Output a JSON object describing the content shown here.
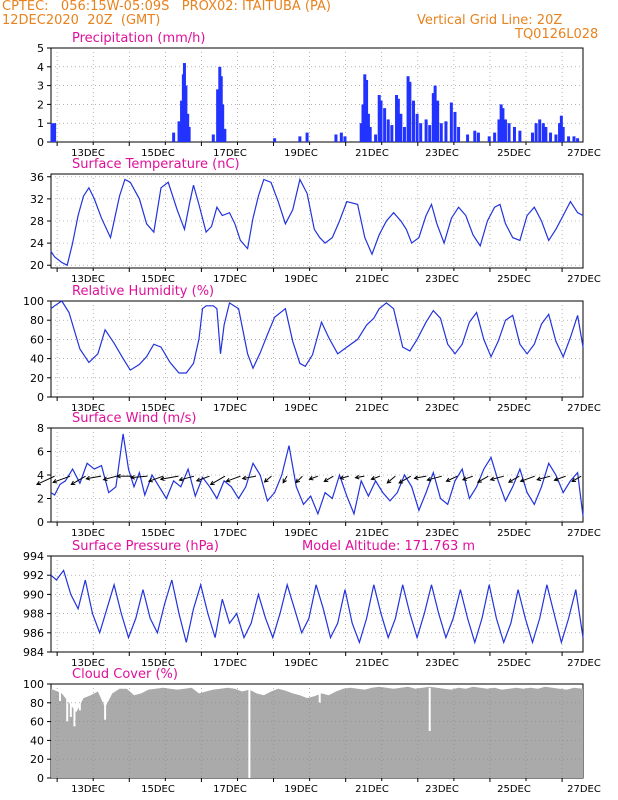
{
  "header": {
    "line1": "CPTEC:   056:15W-05:09S   PROX02: ITAITUBA (PA)",
    "line2_left": "12DEC2020  20Z  (GMT)",
    "line2_right": "Vertical Grid Line: 20Z",
    "code": "TQ0126L028"
  },
  "colors": {
    "series": "#2233dd",
    "title": "#e0109a",
    "header": "#e8821e",
    "bars": "#2233ff",
    "cloud": "#aaaaaa"
  },
  "x_tick_labels": [
    "13DEC",
    "15DEC",
    "17DEC",
    "19DEC",
    "21DEC",
    "23DEC",
    "25DEC",
    "27DEC"
  ],
  "chart_data": [
    {
      "type": "bar",
      "title": "Precipitation (mm/h)",
      "ylim": [
        0,
        5
      ],
      "yticks": [
        0,
        1,
        2,
        3,
        4,
        5
      ],
      "x_unit": "days since 12DEC 20Z",
      "points": [
        [
          0.03,
          1.0
        ],
        [
          0.1,
          1.0
        ],
        [
          3.4,
          0.5
        ],
        [
          3.55,
          1.1
        ],
        [
          3.62,
          2.2
        ],
        [
          3.67,
          3.6
        ],
        [
          3.7,
          4.2
        ],
        [
          3.74,
          3.0
        ],
        [
          3.79,
          1.5
        ],
        [
          3.83,
          0.8
        ],
        [
          4.5,
          0.4
        ],
        [
          4.62,
          2.8
        ],
        [
          4.68,
          4.0
        ],
        [
          4.72,
          3.5
        ],
        [
          4.76,
          2.0
        ],
        [
          4.82,
          0.7
        ],
        [
          6.2,
          0.2
        ],
        [
          6.9,
          0.3
        ],
        [
          7.1,
          0.5
        ],
        [
          7.9,
          0.4
        ],
        [
          8.05,
          0.5
        ],
        [
          8.15,
          0.3
        ],
        [
          8.6,
          1.0
        ],
        [
          8.65,
          2.0
        ],
        [
          8.7,
          3.6
        ],
        [
          8.75,
          3.3
        ],
        [
          8.8,
          1.5
        ],
        [
          8.85,
          0.8
        ],
        [
          9.0,
          0.4
        ],
        [
          9.1,
          2.5
        ],
        [
          9.15,
          2.2
        ],
        [
          9.25,
          1.8
        ],
        [
          9.35,
          1.2
        ],
        [
          9.45,
          0.9
        ],
        [
          9.58,
          2.5
        ],
        [
          9.63,
          2.3
        ],
        [
          9.7,
          1.5
        ],
        [
          9.8,
          0.8
        ],
        [
          9.9,
          3.5
        ],
        [
          9.95,
          3.2
        ],
        [
          10.05,
          2.2
        ],
        [
          10.15,
          1.5
        ],
        [
          10.25,
          1.0
        ],
        [
          10.4,
          1.2
        ],
        [
          10.5,
          0.9
        ],
        [
          10.6,
          2.6
        ],
        [
          10.65,
          3.0
        ],
        [
          10.72,
          2.2
        ],
        [
          10.82,
          1.0
        ],
        [
          10.95,
          1.1
        ],
        [
          11.1,
          2.1
        ],
        [
          11.2,
          1.6
        ],
        [
          11.3,
          0.8
        ],
        [
          11.55,
          0.4
        ],
        [
          11.75,
          0.6
        ],
        [
          11.85,
          0.5
        ],
        [
          12.15,
          0.3
        ],
        [
          12.3,
          0.5
        ],
        [
          12.42,
          1.2
        ],
        [
          12.48,
          2.0
        ],
        [
          12.53,
          1.8
        ],
        [
          12.6,
          1.2
        ],
        [
          12.7,
          1.0
        ],
        [
          12.85,
          0.8
        ],
        [
          13.0,
          0.6
        ],
        [
          13.35,
          0.5
        ],
        [
          13.45,
          1.0
        ],
        [
          13.55,
          1.2
        ],
        [
          13.65,
          1.0
        ],
        [
          13.72,
          0.8
        ],
        [
          13.85,
          0.5
        ],
        [
          14.0,
          0.4
        ],
        [
          14.1,
          1.0
        ],
        [
          14.15,
          1.4
        ],
        [
          14.2,
          0.8
        ],
        [
          14.35,
          0.3
        ],
        [
          14.5,
          0.3
        ],
        [
          14.6,
          0.2
        ]
      ]
    },
    {
      "type": "line",
      "title": "Surface Temperature (nC)",
      "ylim": [
        19.5,
        36.5
      ],
      "yticks": [
        20,
        24,
        28,
        32,
        36
      ],
      "x": [
        0,
        0.1,
        0.3,
        0.45,
        0.6,
        0.75,
        0.9,
        1.05,
        1.2,
        1.4,
        1.65,
        1.9,
        2.05,
        2.2,
        2.45,
        2.65,
        2.85,
        3.05,
        3.25,
        3.5,
        3.7,
        3.85,
        3.95,
        4.1,
        4.3,
        4.45,
        4.6,
        4.75,
        4.95,
        5.1,
        5.25,
        5.45,
        5.6,
        5.75,
        5.9,
        6.1,
        6.3,
        6.5,
        6.7,
        6.9,
        7.1,
        7.3,
        7.45,
        7.6,
        7.8,
        8.0,
        8.2,
        8.5,
        8.7,
        8.9,
        9.1,
        9.3,
        9.5,
        9.7,
        9.85,
        10.0,
        10.2,
        10.4,
        10.55,
        10.7,
        10.9,
        11.1,
        11.3,
        11.5,
        11.7,
        11.9,
        12.1,
        12.3,
        12.45,
        12.6,
        12.8,
        13.0,
        13.2,
        13.4,
        13.6,
        13.8,
        14.0,
        14.2,
        14.4,
        14.6,
        14.75
      ],
      "values": [
        22.5,
        21.5,
        20.5,
        20.0,
        24.0,
        29.0,
        32.5,
        34.0,
        32.0,
        28.5,
        25.0,
        32.5,
        35.5,
        35.0,
        32.0,
        27.5,
        26.0,
        34.0,
        35.0,
        30.0,
        26.5,
        31.5,
        34.5,
        31.0,
        26.0,
        27.0,
        30.5,
        29.0,
        29.5,
        27.5,
        24.5,
        23.0,
        28.5,
        32.5,
        35.5,
        35.0,
        31.5,
        27.5,
        30.0,
        35.5,
        33.0,
        26.5,
        25.0,
        24.0,
        25.0,
        28.0,
        31.5,
        31.0,
        25.0,
        22.0,
        25.5,
        28.0,
        29.5,
        28.0,
        26.5,
        24.0,
        25.0,
        29.0,
        31.0,
        27.5,
        24.0,
        28.5,
        30.5,
        29.0,
        25.5,
        23.5,
        28.0,
        30.5,
        31.0,
        27.5,
        25.0,
        24.5,
        29.0,
        30.5,
        28.0,
        24.5,
        26.5,
        29.0,
        31.5,
        29.5,
        29.0
      ]
    },
    {
      "type": "line",
      "title": "Relative Humidity (%)",
      "ylim": [
        0,
        100
      ],
      "yticks": [
        0,
        20,
        40,
        60,
        80,
        100
      ],
      "x": [
        0,
        0.1,
        0.3,
        0.5,
        0.8,
        1.05,
        1.3,
        1.5,
        1.75,
        2.0,
        2.2,
        2.45,
        2.65,
        2.85,
        3.05,
        3.3,
        3.55,
        3.75,
        3.95,
        4.1,
        4.2,
        4.3,
        4.5,
        4.6,
        4.7,
        4.8,
        4.95,
        5.2,
        5.45,
        5.6,
        5.8,
        6.0,
        6.2,
        6.5,
        6.7,
        6.9,
        7.05,
        7.25,
        7.5,
        7.7,
        7.95,
        8.2,
        8.5,
        8.75,
        8.95,
        9.1,
        9.3,
        9.5,
        9.75,
        9.95,
        10.15,
        10.4,
        10.6,
        10.8,
        11.0,
        11.2,
        11.4,
        11.6,
        11.8,
        12.0,
        12.2,
        12.4,
        12.6,
        12.8,
        13.0,
        13.2,
        13.4,
        13.6,
        13.8,
        14.0,
        14.2,
        14.4,
        14.6,
        14.75
      ],
      "values": [
        92,
        95,
        100,
        88,
        50,
        36,
        45,
        70,
        56,
        40,
        28,
        34,
        42,
        55,
        52,
        36,
        25,
        25,
        35,
        60,
        92,
        95,
        95,
        92,
        45,
        75,
        98,
        92,
        45,
        30,
        46,
        65,
        83,
        92,
        58,
        35,
        32,
        44,
        78,
        62,
        45,
        52,
        60,
        75,
        82,
        92,
        98,
        92,
        52,
        48,
        60,
        78,
        90,
        82,
        55,
        45,
        55,
        78,
        88,
        60,
        42,
        58,
        80,
        85,
        55,
        45,
        55,
        76,
        86,
        58,
        42,
        62,
        85,
        52
      ]
    },
    {
      "type": "line",
      "title": "Surface Wind (m/s)",
      "ylim": [
        0,
        8
      ],
      "yticks": [
        0,
        2,
        4,
        6,
        8
      ],
      "x": [
        0,
        0.1,
        0.25,
        0.4,
        0.6,
        0.8,
        1.0,
        1.2,
        1.4,
        1.6,
        1.8,
        2.0,
        2.15,
        2.3,
        2.45,
        2.6,
        2.8,
        3.0,
        3.2,
        3.4,
        3.6,
        3.8,
        4.0,
        4.2,
        4.4,
        4.6,
        4.8,
        5.0,
        5.2,
        5.4,
        5.6,
        5.8,
        6.0,
        6.2,
        6.4,
        6.6,
        6.8,
        7.0,
        7.2,
        7.4,
        7.6,
        7.8,
        8.0,
        8.2,
        8.4,
        8.6,
        8.8,
        9.0,
        9.2,
        9.4,
        9.6,
        9.8,
        10.0,
        10.2,
        10.4,
        10.6,
        10.8,
        11.0,
        11.2,
        11.4,
        11.6,
        11.8,
        12.0,
        12.2,
        12.4,
        12.6,
        12.8,
        13.0,
        13.2,
        13.4,
        13.6,
        13.8,
        14.0,
        14.2,
        14.4,
        14.6,
        14.75
      ],
      "values": [
        2.5,
        2.3,
        3.2,
        3.5,
        4.5,
        3.3,
        5.0,
        4.5,
        4.8,
        2.5,
        3.0,
        7.5,
        4.5,
        3.0,
        4.2,
        2.3,
        4.0,
        3.0,
        2.0,
        3.5,
        3.0,
        4.5,
        2.2,
        3.8,
        3.0,
        2.0,
        3.5,
        3.0,
        2.0,
        3.0,
        5.0,
        4.0,
        1.8,
        2.5,
        4.0,
        6.5,
        3.0,
        1.5,
        2.2,
        0.7,
        2.5,
        2.0,
        4.0,
        2.2,
        0.7,
        3.5,
        2.2,
        3.5,
        2.5,
        1.8,
        2.5,
        4.0,
        3.0,
        1.0,
        2.5,
        4.2,
        2.0,
        1.5,
        3.5,
        4.5,
        2.0,
        3.0,
        4.5,
        5.5,
        3.5,
        1.8,
        3.0,
        4.5,
        2.5,
        1.5,
        3.0,
        5.0,
        4.0,
        2.5,
        3.5,
        4.2,
        0.5
      ],
      "arrow_angles": [
        -155,
        -160,
        -150,
        -170,
        -165,
        -180,
        -175,
        -160,
        -170,
        -165,
        -160,
        -150,
        -160,
        -170,
        -140,
        -120,
        -135,
        -160,
        -150,
        -165,
        -170,
        -160,
        -140,
        -150,
        -170,
        -165,
        -155,
        -160,
        -150,
        -165,
        -150,
        -160,
        -165,
        -160,
        -150
      ],
      "arrow_lengths": [
        0.65,
        0.6,
        0.55,
        0.5,
        0.45,
        0.5,
        0.55,
        0.5,
        0.6,
        0.5,
        0.45,
        0.55,
        0.5,
        0.45,
        0.3,
        0.25,
        0.3,
        0.3,
        0.35,
        0.3,
        0.3,
        0.3,
        0.35,
        0.45,
        0.4,
        0.5,
        0.4,
        0.35,
        0.4,
        0.45,
        0.4,
        0.5,
        0.45,
        0.4,
        0.35
      ]
    },
    {
      "type": "line",
      "title": "Surface Pressure (hPa)",
      "subtitle": "Model Altitude: 171.763 m",
      "ylim": [
        984,
        994
      ],
      "yticks": [
        984,
        986,
        988,
        990,
        992,
        994
      ],
      "x": [
        0,
        0.15,
        0.35,
        0.55,
        0.75,
        0.95,
        1.15,
        1.35,
        1.55,
        1.75,
        1.95,
        2.15,
        2.35,
        2.55,
        2.75,
        2.95,
        3.15,
        3.35,
        3.55,
        3.75,
        3.95,
        4.15,
        4.35,
        4.55,
        4.75,
        4.95,
        5.15,
        5.35,
        5.55,
        5.75,
        5.95,
        6.15,
        6.35,
        6.55,
        6.75,
        6.95,
        7.15,
        7.35,
        7.55,
        7.75,
        7.95,
        8.15,
        8.35,
        8.55,
        8.75,
        8.95,
        9.15,
        9.35,
        9.55,
        9.75,
        9.95,
        10.15,
        10.35,
        10.55,
        10.75,
        10.95,
        11.15,
        11.35,
        11.55,
        11.75,
        11.95,
        12.15,
        12.35,
        12.55,
        12.75,
        12.95,
        13.15,
        13.35,
        13.55,
        13.75,
        13.95,
        14.15,
        14.35,
        14.55,
        14.75
      ],
      "values": [
        992.0,
        991.5,
        992.5,
        990.0,
        988.5,
        991.5,
        988.0,
        986.0,
        988.5,
        991.0,
        988.0,
        985.5,
        987.5,
        990.5,
        987.5,
        986.0,
        989.0,
        991.5,
        988.0,
        985.0,
        988.5,
        991.0,
        988.0,
        985.5,
        989.5,
        987.0,
        988.0,
        985.5,
        987.0,
        990.0,
        987.5,
        985.5,
        988.0,
        991.0,
        988.5,
        986.0,
        987.5,
        991.0,
        988.5,
        985.5,
        987.0,
        990.5,
        987.0,
        985.0,
        987.5,
        991.0,
        988.0,
        985.5,
        987.5,
        991.0,
        988.0,
        985.5,
        988.0,
        991.0,
        988.0,
        985.5,
        987.5,
        990.5,
        987.5,
        985.0,
        987.5,
        991.0,
        987.5,
        985.0,
        987.0,
        990.5,
        987.5,
        985.0,
        987.5,
        991.0,
        988.0,
        985.0,
        987.5,
        990.5,
        985.5
      ]
    },
    {
      "type": "area",
      "title": "Cloud Cover (%)",
      "ylim": [
        0,
        100
      ],
      "yticks": [
        0,
        20,
        40,
        60,
        80,
        100
      ],
      "x": [
        0,
        0.3,
        0.5,
        0.7,
        0.9,
        1.1,
        1.3,
        1.5,
        1.7,
        1.9,
        2.1,
        2.3,
        2.5,
        2.7,
        2.9,
        3.1,
        3.3,
        3.5,
        3.7,
        3.9,
        4.1,
        4.3,
        4.5,
        4.7,
        4.9,
        5.1,
        5.3,
        5.5,
        5.7,
        5.9,
        6.1,
        6.3,
        6.5,
        6.7,
        6.9,
        7.1,
        7.3,
        7.5,
        7.7,
        7.9,
        8.1,
        8.3,
        8.5,
        8.7,
        8.9,
        9.1,
        9.3,
        9.5,
        9.7,
        9.9,
        10.1,
        10.3,
        10.5,
        10.7,
        10.9,
        11.1,
        11.3,
        11.5,
        11.7,
        11.9,
        12.1,
        12.3,
        12.5,
        12.7,
        12.9,
        13.1,
        13.3,
        13.5,
        13.7,
        13.9,
        14.1,
        14.3,
        14.5,
        14.75
      ],
      "values": [
        95,
        90,
        80,
        70,
        85,
        88,
        92,
        75,
        90,
        95,
        95,
        88,
        90,
        94,
        95,
        96,
        95,
        94,
        95,
        96,
        90,
        92,
        94,
        95,
        96,
        95,
        92,
        94,
        90,
        88,
        92,
        95,
        93,
        90,
        88,
        85,
        87,
        90,
        88,
        92,
        95,
        96,
        95,
        94,
        96,
        97,
        96,
        95,
        96,
        97,
        95,
        96,
        97,
        96,
        95,
        94,
        96,
        95,
        97,
        96,
        95,
        96,
        94,
        95,
        96,
        95,
        96,
        95,
        97,
        96,
        95,
        94,
        96,
        95
      ],
      "dips": [
        [
          0.25,
          82
        ],
        [
          0.45,
          60
        ],
        [
          0.55,
          65
        ],
        [
          0.65,
          55
        ],
        [
          0.8,
          72
        ],
        [
          1.5,
          62
        ],
        [
          5.5,
          0
        ],
        [
          7.45,
          80
        ],
        [
          10.5,
          50
        ]
      ]
    }
  ]
}
